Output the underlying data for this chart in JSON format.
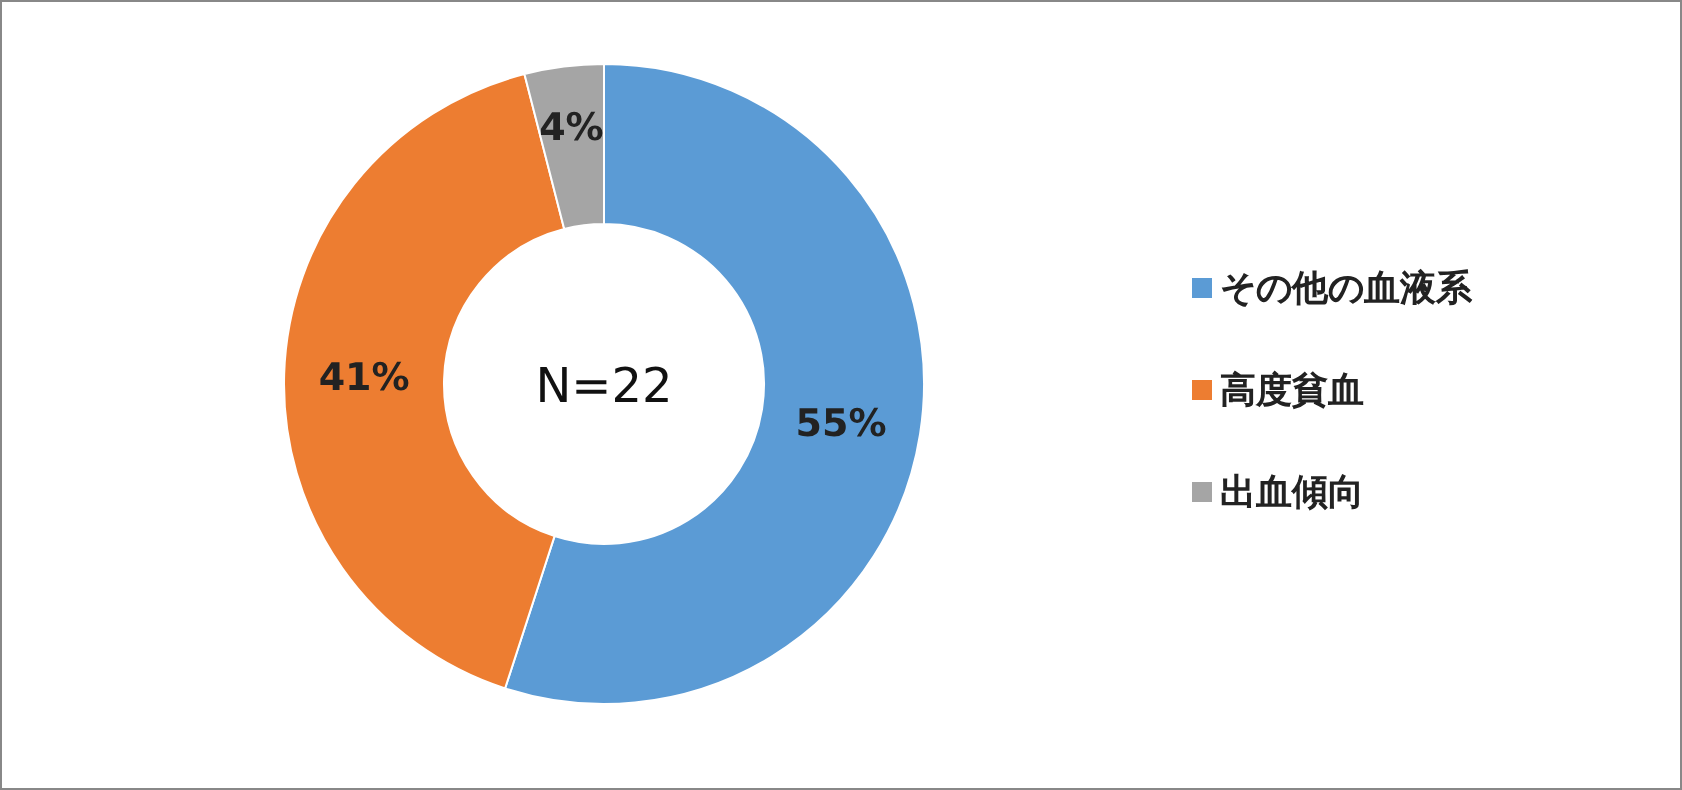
{
  "chart_data": {
    "type": "donut",
    "categories": [
      "その他の血液系",
      "高度貧血",
      "出血傾向"
    ],
    "values": [
      55,
      41,
      4
    ],
    "colors": [
      "#5b9bd5",
      "#ed7d31",
      "#a5a5a5"
    ],
    "value_labels": [
      "55%",
      "41%",
      "4%"
    ],
    "legend": "right",
    "annotations": [
      "N=22"
    ]
  }
}
